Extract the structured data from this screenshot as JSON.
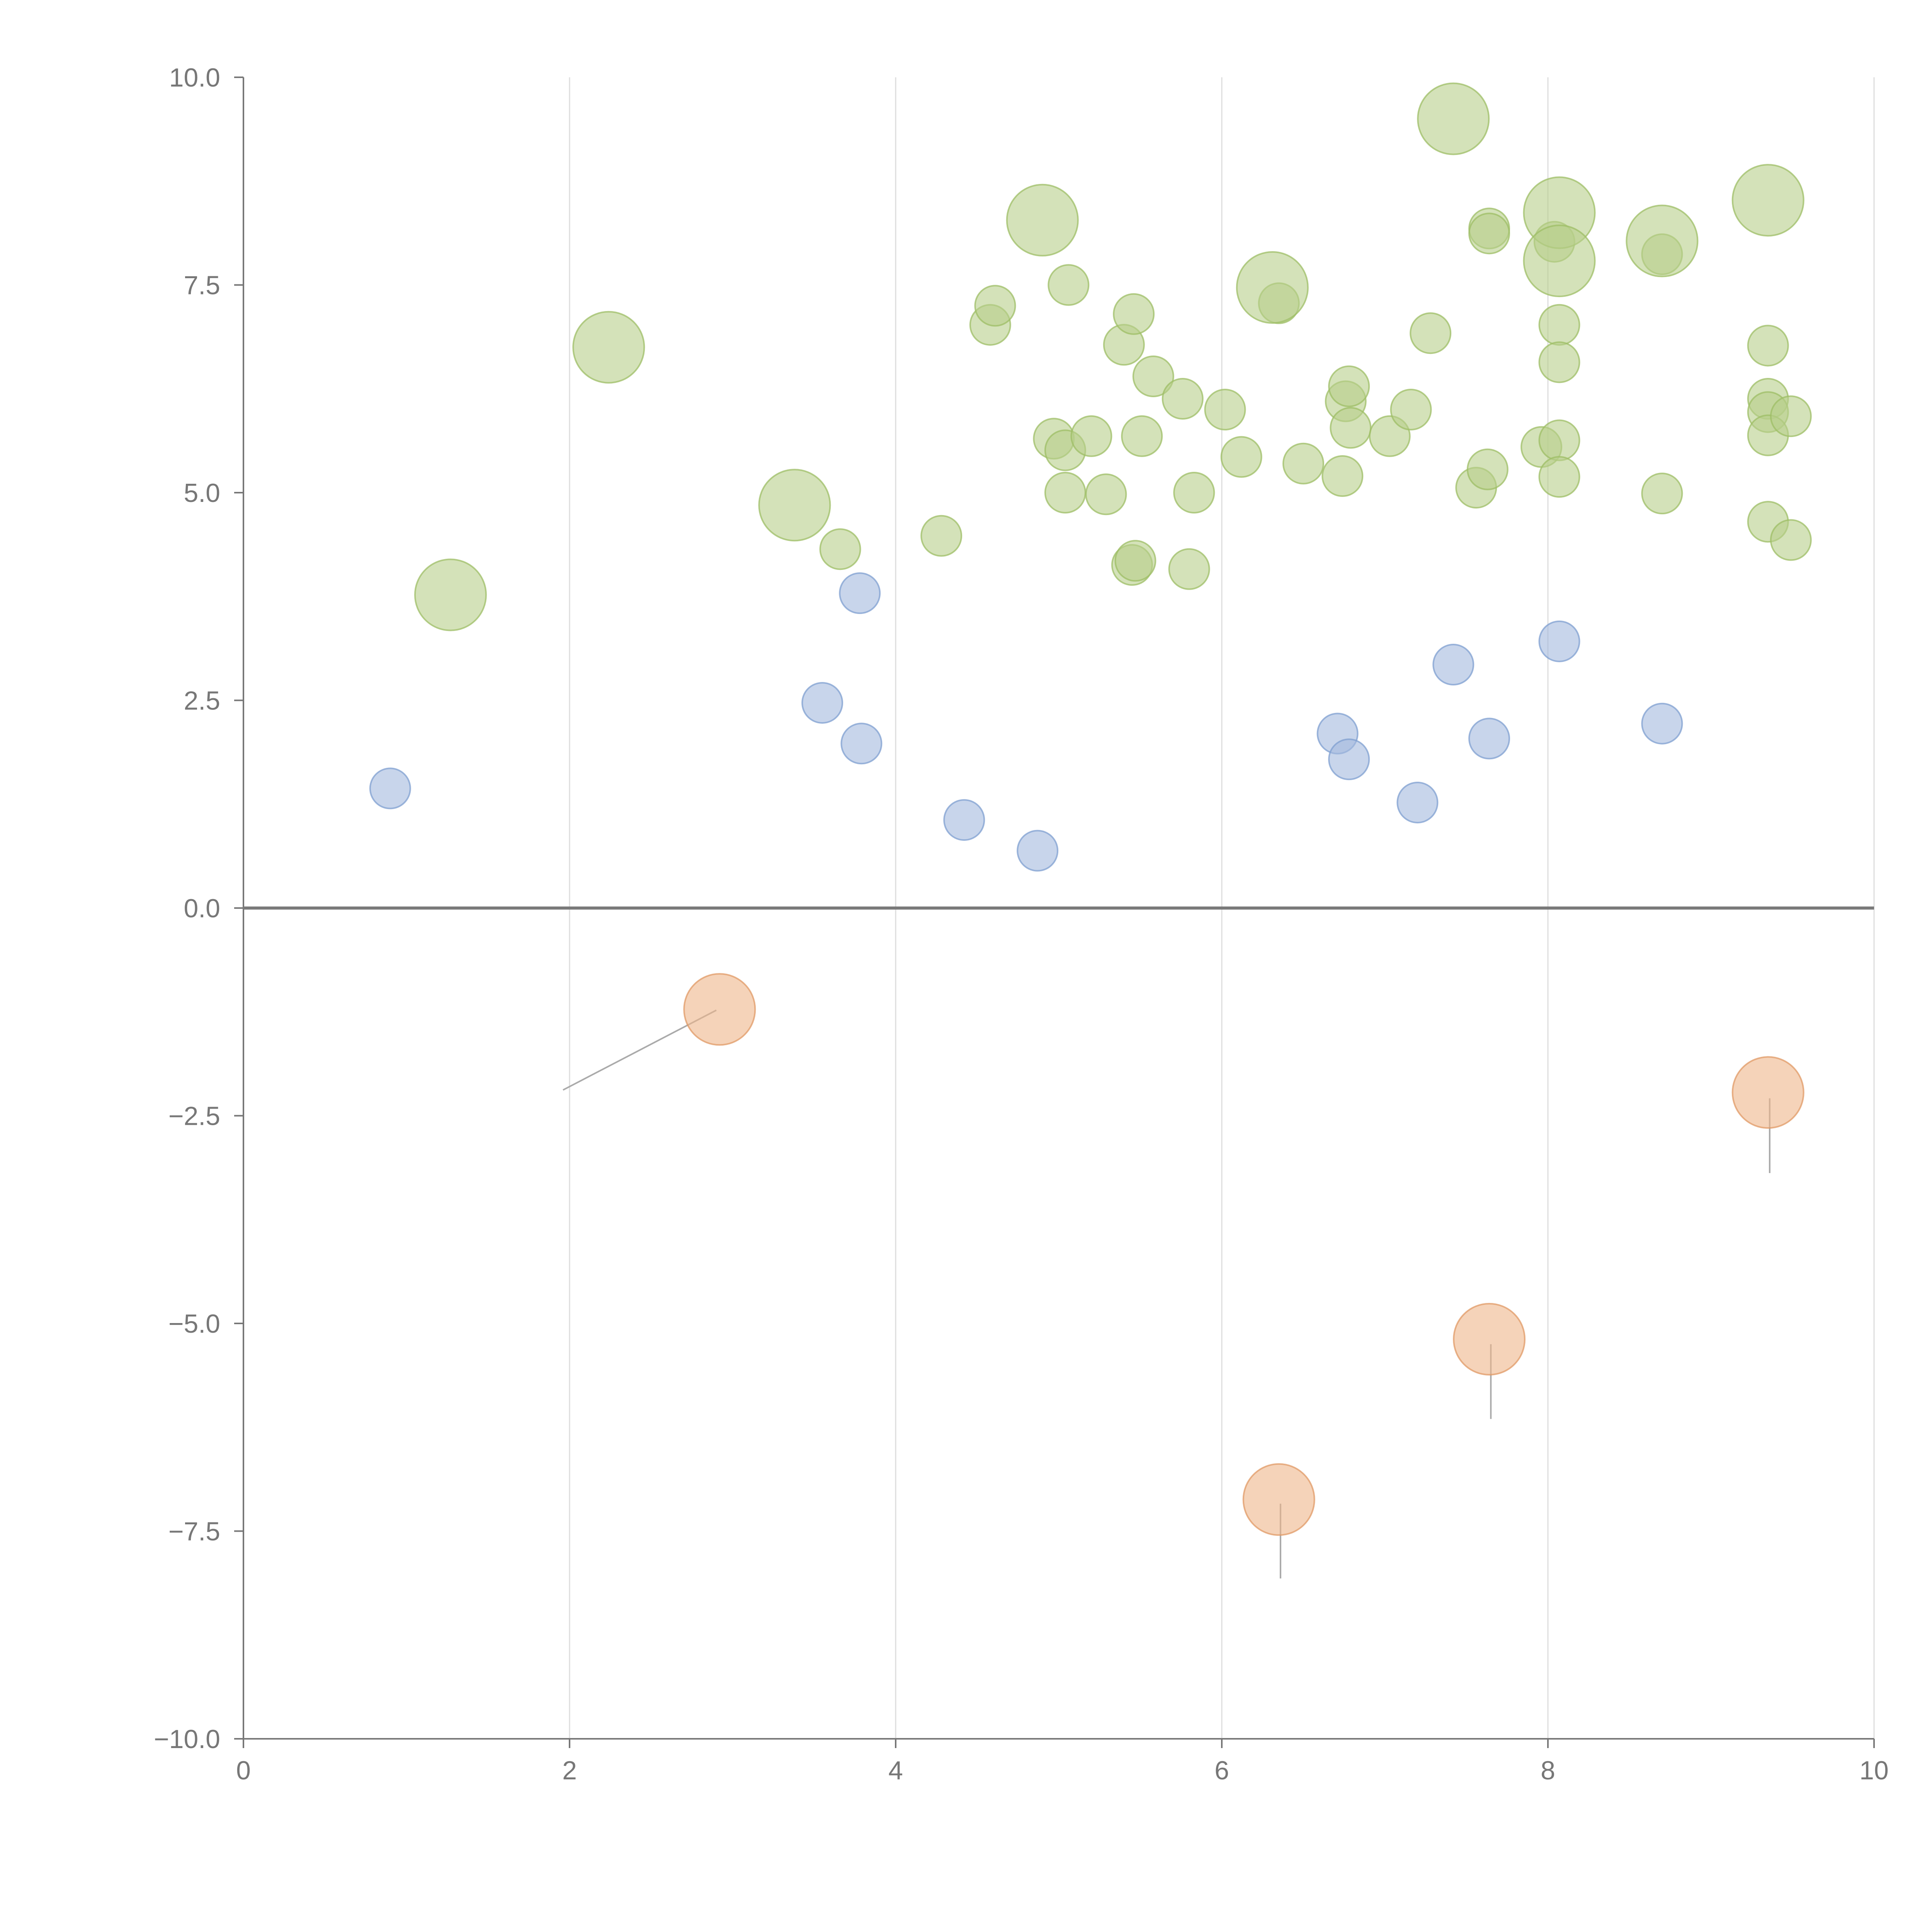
{
  "chart_data": {
    "type": "scatter",
    "title": "",
    "xlabel": "",
    "ylabel": "",
    "xlim": [
      0,
      10
    ],
    "ylim": [
      -10,
      10
    ],
    "x_ticks": [
      0,
      2,
      4,
      6,
      8,
      10
    ],
    "x_tick_labels": [
      "0",
      "2",
      "4",
      "6",
      "8",
      "10"
    ],
    "y_ticks": [
      10,
      7.5,
      5,
      2.5,
      0,
      -2.5,
      -5,
      -7.5,
      -10
    ],
    "y_tick_labels": [
      "10.0",
      "7.5",
      "5.0",
      "2.5",
      "0.0",
      "−2.5",
      "−5.0",
      "−7.5",
      "−10.0"
    ],
    "vertical_grid": true,
    "zero_line": true,
    "colors": {
      "green_fill": "#b7cf8a",
      "green_stroke": "#9dbd66",
      "blue_fill": "#a3b9de",
      "blue_stroke": "#7f9fd0",
      "orange_fill": "#eeb68a",
      "orange_stroke": "#e09a66",
      "leader_light": "#ffffff",
      "leader_dark": "#aaaaaa"
    },
    "series": [
      {
        "name": "green",
        "size": "small",
        "points": [
          [
            3.66,
            4.32
          ],
          [
            4.28,
            4.48
          ],
          [
            4.58,
            7.02
          ],
          [
            4.61,
            7.25
          ],
          [
            4.97,
            5.65
          ],
          [
            5.04,
            5.51
          ],
          [
            5.04,
            5.0
          ],
          [
            5.06,
            7.5
          ],
          [
            5.2,
            5.68
          ],
          [
            5.29,
            4.98
          ],
          [
            5.4,
            6.78
          ],
          [
            5.45,
            4.13
          ],
          [
            5.46,
            7.15
          ],
          [
            5.47,
            4.18
          ],
          [
            5.51,
            5.68
          ],
          [
            5.58,
            6.4
          ],
          [
            5.76,
            6.13
          ],
          [
            5.8,
            4.08
          ],
          [
            5.83,
            5.0
          ],
          [
            6.02,
            6.0
          ],
          [
            6.12,
            5.43
          ],
          [
            6.35,
            7.28
          ],
          [
            6.5,
            5.35
          ],
          [
            6.74,
            5.2
          ],
          [
            6.76,
            6.1
          ],
          [
            6.78,
            6.28
          ],
          [
            6.79,
            5.78
          ],
          [
            7.03,
            5.68
          ],
          [
            7.16,
            6.0
          ],
          [
            7.28,
            6.92
          ],
          [
            7.56,
            5.06
          ],
          [
            7.63,
            5.28
          ],
          [
            7.64,
            8.18
          ],
          [
            7.64,
            8.12
          ],
          [
            7.96,
            5.55
          ],
          [
            8.04,
            8.02
          ],
          [
            8.07,
            7.02
          ],
          [
            8.07,
            6.57
          ],
          [
            8.07,
            5.63
          ],
          [
            8.07,
            5.19
          ],
          [
            8.7,
            7.87
          ],
          [
            8.7,
            4.99
          ],
          [
            9.35,
            6.77
          ],
          [
            9.35,
            6.13
          ],
          [
            9.35,
            5.97
          ],
          [
            9.35,
            5.69
          ],
          [
            9.35,
            4.65
          ],
          [
            9.49,
            5.92
          ],
          [
            9.49,
            4.43
          ]
        ]
      },
      {
        "name": "green-large",
        "size": "large",
        "points": [
          [
            1.27,
            3.77
          ],
          [
            2.24,
            6.75
          ],
          [
            3.38,
            4.85
          ],
          [
            4.9,
            8.28
          ],
          [
            6.31,
            7.47
          ],
          [
            7.42,
            9.5
          ],
          [
            8.07,
            8.37
          ],
          [
            8.07,
            7.79
          ],
          [
            8.7,
            8.03
          ],
          [
            9.35,
            8.52
          ]
        ]
      },
      {
        "name": "blue",
        "size": "small",
        "points": [
          [
            0.9,
            1.44
          ],
          [
            3.55,
            2.47
          ],
          [
            3.78,
            3.79
          ],
          [
            3.79,
            1.98
          ],
          [
            4.42,
            1.06
          ],
          [
            4.87,
            0.69
          ],
          [
            6.71,
            2.1
          ],
          [
            6.78,
            1.79
          ],
          [
            7.2,
            1.27
          ],
          [
            7.42,
            2.93
          ],
          [
            7.64,
            2.04
          ],
          [
            8.07,
            3.21
          ],
          [
            8.7,
            2.22
          ]
        ]
      },
      {
        "name": "orange",
        "size": "large",
        "points": [
          [
            2.92,
            -1.22
          ],
          [
            6.35,
            -7.12
          ],
          [
            7.64,
            -5.19
          ],
          [
            9.35,
            -2.22
          ]
        ]
      }
    ],
    "leader_lines": [
      {
        "color": "light",
        "from": [
          1.3,
          3.77
        ],
        "to": [
          1.49,
          3.82
        ]
      },
      {
        "color": "light",
        "from": [
          3.4,
          4.85
        ],
        "to": [
          3.6,
          4.81
        ]
      },
      {
        "color": "light",
        "from": [
          4.93,
          8.33
        ],
        "to": [
          5.06,
          8.55
        ]
      },
      {
        "color": "light",
        "from": [
          6.34,
          7.38
        ],
        "to": [
          6.46,
          7.18
        ]
      },
      {
        "color": "light",
        "from": [
          7.4,
          9.53
        ],
        "to": [
          7.6,
          9.5
        ]
      },
      {
        "color": "light",
        "from": [
          8.1,
          8.3
        ],
        "to": [
          8.26,
          7.79
        ]
      },
      {
        "color": "light",
        "from": [
          8.07,
          7.7
        ],
        "to": [
          8.11,
          6.9
        ]
      },
      {
        "color": "light",
        "from": [
          8.74,
          7.97
        ],
        "to": [
          8.86,
          7.88
        ]
      },
      {
        "color": "light",
        "from": [
          9.35,
          8.6
        ],
        "to": [
          9.33,
          8.86
        ]
      },
      {
        "color": "dark",
        "from": [
          2.9,
          -1.23
        ],
        "to": [
          1.96,
          -2.19
        ]
      },
      {
        "color": "dark",
        "from": [
          6.36,
          -7.17
        ],
        "to": [
          6.36,
          -8.07
        ]
      },
      {
        "color": "dark",
        "from": [
          7.65,
          -5.25
        ],
        "to": [
          7.65,
          -6.15
        ]
      },
      {
        "color": "dark",
        "from": [
          9.36,
          -2.29
        ],
        "to": [
          9.36,
          -3.19
        ]
      }
    ]
  }
}
